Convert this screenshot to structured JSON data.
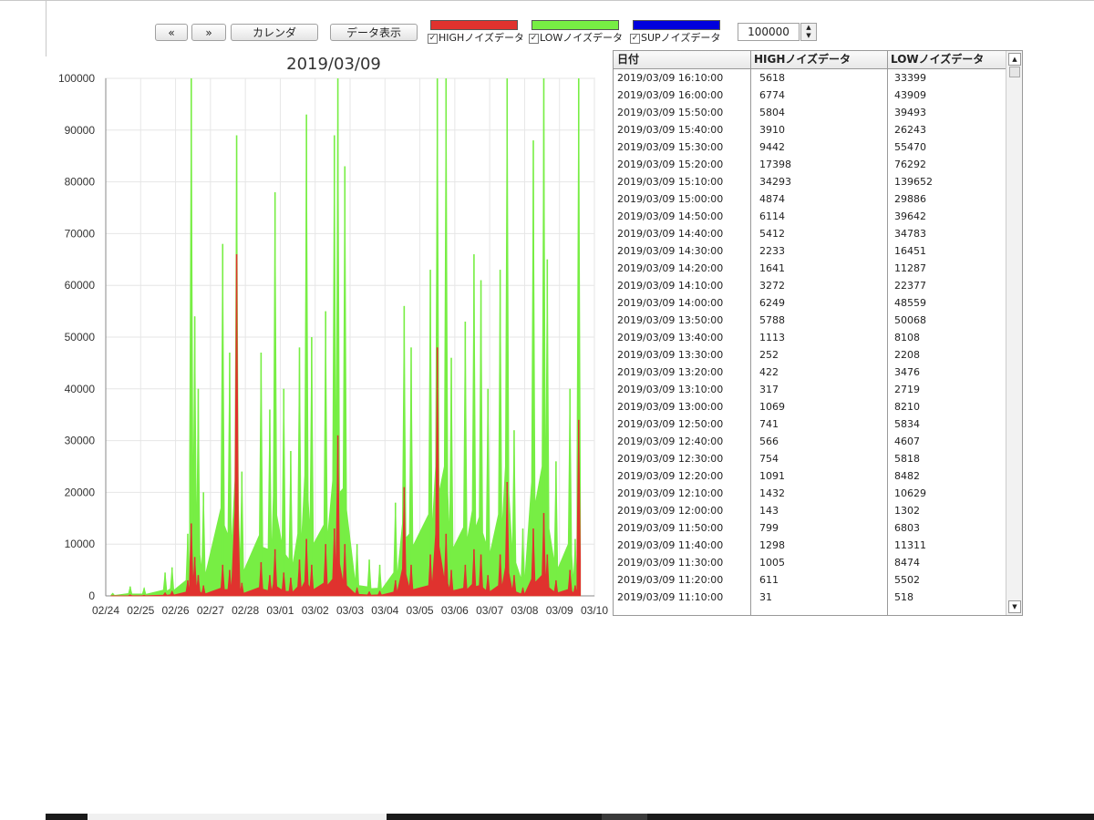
{
  "toolbar": {
    "prev_label": "«",
    "next_label": "»",
    "calendar_label": "カレンダ",
    "data_display_label": "データ表示",
    "legend": [
      {
        "label": "HIGHノイズデータ",
        "color": "#e0322e",
        "checked": true
      },
      {
        "label": "LOWノイズデータ",
        "color": "#77ee44",
        "checked": true
      },
      {
        "label": "SUPノイズデータ",
        "color": "#0000dd",
        "checked": true
      }
    ],
    "ymax_value": "100000"
  },
  "chart_data": {
    "type": "bar",
    "title": "2019/03/09",
    "ylim": [
      0,
      100000
    ],
    "yticks": [
      0,
      10000,
      20000,
      30000,
      40000,
      50000,
      60000,
      70000,
      80000,
      90000,
      100000
    ],
    "ytick_labels": [
      "0",
      "10000",
      "20000",
      "30000",
      "40000",
      "50000",
      "60000",
      "70000",
      "80000",
      "90000",
      "100000"
    ],
    "xticks": [
      "02/24",
      "02/25",
      "02/26",
      "02/27",
      "02/28",
      "03/01",
      "03/02",
      "03/03",
      "03/04",
      "03/05",
      "03/06",
      "03/07",
      "03/08",
      "03/09",
      "03/10"
    ],
    "grid": true,
    "series": [
      {
        "name": "LOWノイズデータ",
        "color": "#77ee44",
        "points": [
          [
            0.2,
            500
          ],
          [
            0.7,
            1800
          ],
          [
            1.1,
            1500
          ],
          [
            1.7,
            4500
          ],
          [
            1.9,
            5500
          ],
          [
            2.35,
            12000
          ],
          [
            2.45,
            100000
          ],
          [
            2.55,
            54000
          ],
          [
            2.65,
            40000
          ],
          [
            2.8,
            20000
          ],
          [
            3.35,
            68000
          ],
          [
            3.55,
            47000
          ],
          [
            3.75,
            89000
          ],
          [
            3.9,
            24000
          ],
          [
            4.45,
            47000
          ],
          [
            4.7,
            36000
          ],
          [
            4.85,
            78000
          ],
          [
            5.1,
            40000
          ],
          [
            5.3,
            28000
          ],
          [
            5.55,
            48000
          ],
          [
            5.75,
            93000
          ],
          [
            5.9,
            50000
          ],
          [
            6.3,
            55000
          ],
          [
            6.55,
            89000
          ],
          [
            6.65,
            100000
          ],
          [
            6.85,
            83000
          ],
          [
            7.2,
            10000
          ],
          [
            7.55,
            7000
          ],
          [
            7.85,
            6000
          ],
          [
            8.3,
            18000
          ],
          [
            8.55,
            56000
          ],
          [
            8.75,
            48000
          ],
          [
            9.3,
            63000
          ],
          [
            9.5,
            100000
          ],
          [
            9.75,
            100000
          ],
          [
            9.9,
            46000
          ],
          [
            10.3,
            53000
          ],
          [
            10.55,
            66000
          ],
          [
            10.75,
            61000
          ],
          [
            10.95,
            40000
          ],
          [
            11.3,
            63000
          ],
          [
            11.5,
            100000
          ],
          [
            11.7,
            32000
          ],
          [
            11.95,
            13000
          ],
          [
            12.25,
            88000
          ],
          [
            12.55,
            100000
          ],
          [
            12.65,
            65000
          ],
          [
            12.9,
            26000
          ],
          [
            13.3,
            40000
          ],
          [
            13.45,
            11000
          ],
          [
            13.55,
            100000
          ]
        ]
      },
      {
        "name": "HIGHノイズデータ",
        "color": "#e0322e",
        "points": [
          [
            0.2,
            50
          ],
          [
            0.7,
            200
          ],
          [
            1.1,
            150
          ],
          [
            1.7,
            600
          ],
          [
            1.9,
            900
          ],
          [
            2.35,
            3000
          ],
          [
            2.45,
            14000
          ],
          [
            2.55,
            7500
          ],
          [
            2.65,
            4000
          ],
          [
            2.8,
            2000
          ],
          [
            3.35,
            6000
          ],
          [
            3.55,
            5000
          ],
          [
            3.75,
            66000
          ],
          [
            3.9,
            2500
          ],
          [
            4.45,
            6500
          ],
          [
            4.7,
            4000
          ],
          [
            4.85,
            9000
          ],
          [
            5.1,
            4500
          ],
          [
            5.3,
            3500
          ],
          [
            5.55,
            7000
          ],
          [
            5.75,
            11000
          ],
          [
            5.9,
            6000
          ],
          [
            6.3,
            10000
          ],
          [
            6.55,
            13000
          ],
          [
            6.65,
            31000
          ],
          [
            6.85,
            10000
          ],
          [
            7.2,
            1500
          ],
          [
            7.55,
            800
          ],
          [
            7.85,
            900
          ],
          [
            8.3,
            3000
          ],
          [
            8.55,
            21000
          ],
          [
            8.75,
            6000
          ],
          [
            9.3,
            8000
          ],
          [
            9.5,
            48000
          ],
          [
            9.75,
            12000
          ],
          [
            9.9,
            5000
          ],
          [
            10.3,
            6000
          ],
          [
            10.55,
            9000
          ],
          [
            10.75,
            8000
          ],
          [
            10.95,
            4000
          ],
          [
            11.3,
            8000
          ],
          [
            11.5,
            22000
          ],
          [
            11.7,
            4000
          ],
          [
            11.95,
            1500
          ],
          [
            12.25,
            13000
          ],
          [
            12.55,
            16000
          ],
          [
            12.65,
            8000
          ],
          [
            12.9,
            3000
          ],
          [
            13.3,
            5000
          ],
          [
            13.45,
            2000
          ],
          [
            13.55,
            34000
          ]
        ]
      }
    ]
  },
  "table": {
    "headers": [
      "日付",
      "HIGHノイズデータ",
      "LOWノイズデータ"
    ],
    "rows": [
      [
        "2019/03/09 16:10:00",
        "5618",
        "33399"
      ],
      [
        "2019/03/09 16:00:00",
        "6774",
        "43909"
      ],
      [
        "2019/03/09 15:50:00",
        "5804",
        "39493"
      ],
      [
        "2019/03/09 15:40:00",
        "3910",
        "26243"
      ],
      [
        "2019/03/09 15:30:00",
        "9442",
        "55470"
      ],
      [
        "2019/03/09 15:20:00",
        "17398",
        "76292"
      ],
      [
        "2019/03/09 15:10:00",
        "34293",
        "139652"
      ],
      [
        "2019/03/09 15:00:00",
        "4874",
        "29886"
      ],
      [
        "2019/03/09 14:50:00",
        "6114",
        "39642"
      ],
      [
        "2019/03/09 14:40:00",
        "5412",
        "34783"
      ],
      [
        "2019/03/09 14:30:00",
        "2233",
        "16451"
      ],
      [
        "2019/03/09 14:20:00",
        "1641",
        "11287"
      ],
      [
        "2019/03/09 14:10:00",
        "3272",
        "22377"
      ],
      [
        "2019/03/09 14:00:00",
        "6249",
        "48559"
      ],
      [
        "2019/03/09 13:50:00",
        "5788",
        "50068"
      ],
      [
        "2019/03/09 13:40:00",
        "1113",
        "8108"
      ],
      [
        "2019/03/09 13:30:00",
        "252",
        "2208"
      ],
      [
        "2019/03/09 13:20:00",
        "422",
        "3476"
      ],
      [
        "2019/03/09 13:10:00",
        "317",
        "2719"
      ],
      [
        "2019/03/09 13:00:00",
        "1069",
        "8210"
      ],
      [
        "2019/03/09 12:50:00",
        "741",
        "5834"
      ],
      [
        "2019/03/09 12:40:00",
        "566",
        "4607"
      ],
      [
        "2019/03/09 12:30:00",
        "754",
        "5818"
      ],
      [
        "2019/03/09 12:20:00",
        "1091",
        "8482"
      ],
      [
        "2019/03/09 12:10:00",
        "1432",
        "10629"
      ],
      [
        "2019/03/09 12:00:00",
        "143",
        "1302"
      ],
      [
        "2019/03/09 11:50:00",
        "799",
        "6803"
      ],
      [
        "2019/03/09 11:40:00",
        "1298",
        "11311"
      ],
      [
        "2019/03/09 11:30:00",
        "1005",
        "8474"
      ],
      [
        "2019/03/09 11:20:00",
        "611",
        "5502"
      ],
      [
        "2019/03/09 11:10:00",
        "31",
        "518"
      ]
    ]
  }
}
